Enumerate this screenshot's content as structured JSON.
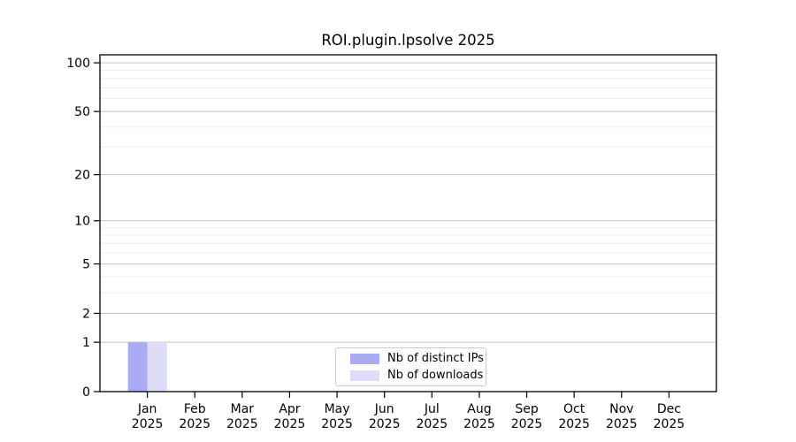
{
  "chart_data": {
    "type": "bar",
    "title": "ROI.plugin.lpsolve 2025",
    "categories": [
      "Jan",
      "Feb",
      "Mar",
      "Apr",
      "May",
      "Jun",
      "Jul",
      "Aug",
      "Sep",
      "Oct",
      "Nov",
      "Dec"
    ],
    "year_label": "2025",
    "series": [
      {
        "name": "Nb of distinct IPs",
        "color": "#aaaaf5",
        "values": [
          1,
          0,
          0,
          0,
          0,
          0,
          0,
          0,
          0,
          0,
          0,
          0
        ]
      },
      {
        "name": "Nb of downloads",
        "color": "#ddddf9",
        "values": [
          1,
          0,
          0,
          0,
          0,
          0,
          0,
          0,
          0,
          0,
          0,
          0
        ]
      }
    ],
    "xlabel": "",
    "ylabel": "",
    "yscale": "log1p",
    "ylim": [
      0,
      112
    ],
    "yticks": [
      0,
      1,
      2,
      5,
      10,
      20,
      50,
      100
    ],
    "yticks_minor": [
      3,
      4,
      6,
      7,
      8,
      9,
      30,
      40,
      60,
      70,
      80,
      90
    ],
    "grid": "horizontal",
    "legend_position": "lower-center-inside",
    "colors": {
      "axis": "#000000",
      "text": "#000000",
      "grid_major": "#c4c4c4",
      "grid_minor": "#ededed",
      "legend_border": "#cccccc",
      "background": "#ffffff"
    }
  }
}
